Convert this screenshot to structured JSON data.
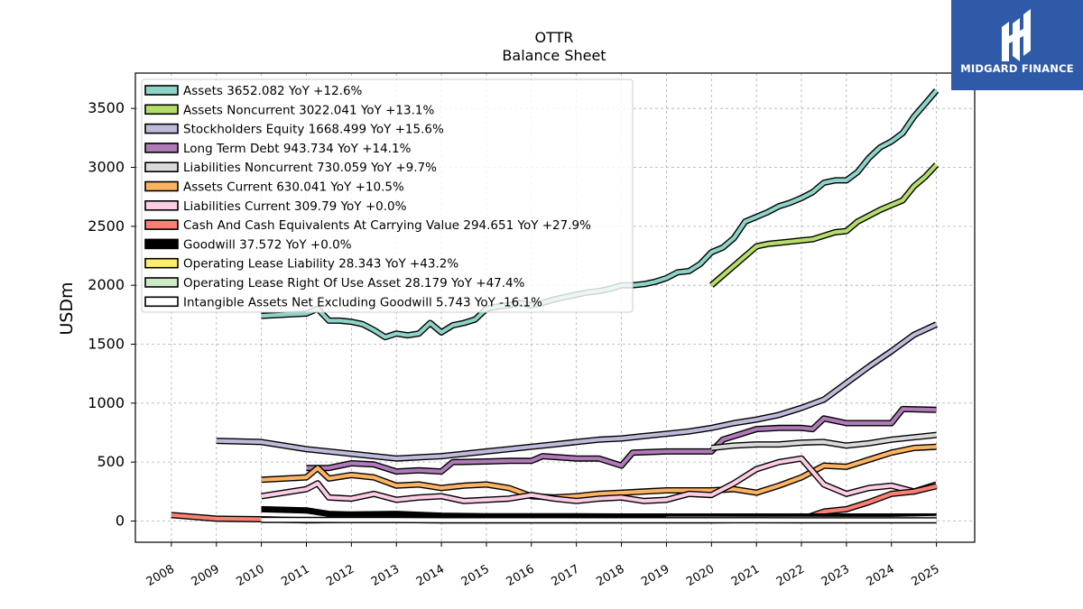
{
  "header": {
    "ticker": "OTTR",
    "subtitle": "Balance  Sheet"
  },
  "watermark": {
    "text": "MIDGARD FINANCE",
    "background": "#2f5aa8"
  },
  "chart_data": {
    "type": "line",
    "ylabel": "USDm",
    "xlabel": "",
    "ylim": [
      -180,
      3800
    ],
    "xlim": [
      2007.2,
      2025.85
    ],
    "yticks": [
      0,
      500,
      1000,
      1500,
      2000,
      2500,
      3000,
      3500
    ],
    "xticks": [
      "2008",
      "2009",
      "2010",
      "2011",
      "2012",
      "2013",
      "2014",
      "2015",
      "2016",
      "2017",
      "2018",
      "2019",
      "2020",
      "2021",
      "2022",
      "2023",
      "2024",
      "2025"
    ],
    "grid": true,
    "legend_position": "top-left",
    "series": [
      {
        "name": "Assets  3652.082 YoY +12.6%",
        "color": "#8dd3c7",
        "x": [
          2010,
          2011,
          2011.25,
          2011.5,
          2011.75,
          2012,
          2012.25,
          2012.5,
          2012.75,
          2013,
          2013.25,
          2013.5,
          2013.75,
          2014,
          2014.25,
          2014.5,
          2014.75,
          2015,
          2015.25,
          2015.5,
          2015.75,
          2016,
          2016.25,
          2016.5,
          2016.75,
          2017,
          2017.25,
          2017.5,
          2017.75,
          2018,
          2018.25,
          2018.5,
          2018.75,
          2019,
          2019.25,
          2019.5,
          2019.75,
          2020,
          2020.25,
          2020.5,
          2020.75,
          2021,
          2021.25,
          2021.5,
          2021.75,
          2022,
          2022.25,
          2022.5,
          2022.75,
          2023,
          2023.25,
          2023.5,
          2023.75,
          2024,
          2024.25,
          2024.5,
          2024.75,
          2025
        ],
        "y": [
          1740,
          1760,
          1800,
          1700,
          1700,
          1690,
          1670,
          1620,
          1560,
          1590,
          1575,
          1590,
          1680,
          1600,
          1660,
          1680,
          1710,
          1800,
          1820,
          1830,
          1850,
          1830,
          1850,
          1880,
          1900,
          1920,
          1940,
          1950,
          1970,
          2000,
          2000,
          2010,
          2030,
          2060,
          2110,
          2120,
          2180,
          2280,
          2320,
          2400,
          2540,
          2580,
          2620,
          2670,
          2700,
          2740,
          2790,
          2870,
          2890,
          2890,
          2960,
          3080,
          3170,
          3220,
          3290,
          3430,
          3540,
          3652
        ]
      },
      {
        "name": "Assets Noncurrent  3022.041 YoY +13.1%",
        "color": "#b3de69",
        "x": [
          2020,
          2021,
          2021.25,
          2021.5,
          2021.75,
          2022,
          2022.25,
          2022.5,
          2022.75,
          2023,
          2023.25,
          2023.5,
          2023.75,
          2024,
          2024.25,
          2024.5,
          2024.75,
          2025
        ],
        "y": [
          2000,
          2330,
          2350,
          2360,
          2370,
          2380,
          2390,
          2420,
          2450,
          2460,
          2540,
          2590,
          2640,
          2680,
          2720,
          2840,
          2920,
          3022
        ]
      },
      {
        "name": "Stockholders Equity  1668.499 YoY +15.6%",
        "color": "#bebada",
        "x": [
          2009,
          2010,
          2011,
          2012,
          2013,
          2013.5,
          2014,
          2014.5,
          2015,
          2015.5,
          2016,
          2016.5,
          2017,
          2017.5,
          2018,
          2018.5,
          2019,
          2019.5,
          2020,
          2020.5,
          2021,
          2021.5,
          2022,
          2022.5,
          2023,
          2023.5,
          2024,
          2024.5,
          2025
        ],
        "y": [
          680,
          670,
          610,
          570,
          530,
          540,
          550,
          570,
          590,
          610,
          630,
          650,
          670,
          690,
          700,
          720,
          740,
          760,
          790,
          830,
          860,
          900,
          960,
          1030,
          1170,
          1310,
          1440,
          1580,
          1668
        ]
      },
      {
        "name": "Long Term Debt  943.734 YoY +14.1%",
        "color": "#b07ab8",
        "x": [
          2011,
          2011.5,
          2012,
          2012.5,
          2013,
          2013.5,
          2014,
          2014.25,
          2015,
          2015.5,
          2016,
          2016.25,
          2017,
          2017.5,
          2018,
          2018.25,
          2019,
          2019.5,
          2020,
          2020.25,
          2021,
          2021.5,
          2022,
          2022.25,
          2022.5,
          2023,
          2023.5,
          2024,
          2024.25,
          2025
        ],
        "y": [
          450,
          450,
          490,
          480,
          420,
          430,
          420,
          500,
          505,
          510,
          510,
          550,
          530,
          530,
          470,
          580,
          590,
          590,
          590,
          690,
          780,
          790,
          790,
          780,
          870,
          830,
          830,
          830,
          950,
          943
        ]
      },
      {
        "name": "Liabilities Noncurrent  730.059 YoY +9.7%",
        "color": "#d9d9d9",
        "x": [
          2020,
          2020.5,
          2021,
          2021.5,
          2022,
          2022.5,
          2023,
          2023.5,
          2024,
          2024.5,
          2025
        ],
        "y": [
          620,
          640,
          650,
          650,
          665,
          670,
          640,
          660,
          690,
          710,
          730
        ]
      },
      {
        "name": "Assets Current  630.041 YoY +10.5%",
        "color": "#fdb462",
        "x": [
          2010,
          2011,
          2011.25,
          2011.5,
          2012,
          2012.5,
          2013,
          2013.5,
          2014,
          2014.5,
          2015,
          2015.5,
          2016,
          2016.5,
          2017,
          2017.5,
          2018,
          2018.5,
          2019,
          2019.5,
          2020,
          2020.5,
          2021,
          2021.5,
          2022,
          2022.5,
          2023,
          2023.5,
          2024,
          2024.5,
          2025
        ],
        "y": [
          350,
          370,
          450,
          360,
          390,
          370,
          300,
          310,
          280,
          300,
          310,
          280,
          210,
          200,
          210,
          230,
          240,
          250,
          260,
          260,
          260,
          270,
          240,
          300,
          370,
          470,
          460,
          520,
          580,
          620,
          630
        ]
      },
      {
        "name": "Liabilities Current  309.79 YoY +0.0%",
        "color": "#fccde5",
        "x": [
          2010,
          2011,
          2011.25,
          2011.5,
          2012,
          2012.5,
          2013,
          2013.5,
          2014,
          2014.5,
          2015,
          2015.5,
          2016,
          2016.5,
          2017,
          2017.5,
          2018,
          2018.5,
          2019,
          2019.5,
          2020,
          2020.5,
          2021,
          2021.5,
          2022,
          2022.5,
          2023,
          2023.5,
          2024,
          2024.5,
          2025
        ],
        "y": [
          210,
          270,
          320,
          200,
          190,
          230,
          180,
          200,
          210,
          170,
          180,
          190,
          220,
          190,
          170,
          190,
          200,
          170,
          180,
          230,
          220,
          320,
          440,
          500,
          530,
          310,
          230,
          280,
          300,
          250,
          310
        ]
      },
      {
        "name": "Cash And Cash Equivalents At Carrying Value  294.651 YoY +27.9%",
        "color": "#fb8072",
        "x": [
          2008,
          2009,
          2010,
          2011,
          2012,
          2013,
          2014,
          2015,
          2016,
          2017,
          2018,
          2019,
          2020,
          2021,
          2022,
          2022.5,
          2023,
          2023.5,
          2024,
          2024.5,
          2025
        ],
        "y": [
          50,
          20,
          15,
          5,
          10,
          8,
          5,
          5,
          5,
          5,
          5,
          5,
          5,
          10,
          15,
          80,
          100,
          160,
          230,
          250,
          295
        ]
      },
      {
        "name": "Goodwill  37.572 YoY +0.0%",
        "color": "#000000",
        "x": [
          2010,
          2011,
          2011.5,
          2012,
          2013,
          2014,
          2015,
          2016,
          2017,
          2018,
          2019,
          2020,
          2021,
          2022,
          2023,
          2024,
          2025
        ],
        "y": [
          100,
          90,
          60,
          55,
          60,
          45,
          40,
          40,
          40,
          38,
          38,
          38,
          38,
          38,
          38,
          38,
          38
        ]
      },
      {
        "name": "Operating Lease Liability  28.343 YoY +43.2%",
        "color": "#ffed6f",
        "x": [
          2019,
          2020,
          2021,
          2022,
          2023,
          2024,
          2025
        ],
        "y": [
          22,
          22,
          21,
          21,
          20,
          20,
          28
        ]
      },
      {
        "name": "Operating Lease Right Of Use Asset  28.179 YoY +47.4%",
        "color": "#ccebc5",
        "x": [
          2019,
          2020,
          2021,
          2022,
          2023,
          2024,
          2025
        ],
        "y": [
          21,
          21,
          20,
          20,
          19,
          19,
          28
        ]
      },
      {
        "name": "Intangible Assets Net Excluding Goodwill  5.743 YoY -16.1%",
        "color": "#ffffff",
        "x": [
          2010,
          2011,
          2012,
          2013,
          2014,
          2015,
          2016,
          2017,
          2018,
          2019,
          2020,
          2021,
          2022,
          2023,
          2024,
          2025
        ],
        "y": [
          10,
          9,
          8,
          8,
          7,
          7,
          7,
          7,
          7,
          7,
          7,
          7,
          6,
          6,
          6,
          5.7
        ]
      }
    ]
  }
}
